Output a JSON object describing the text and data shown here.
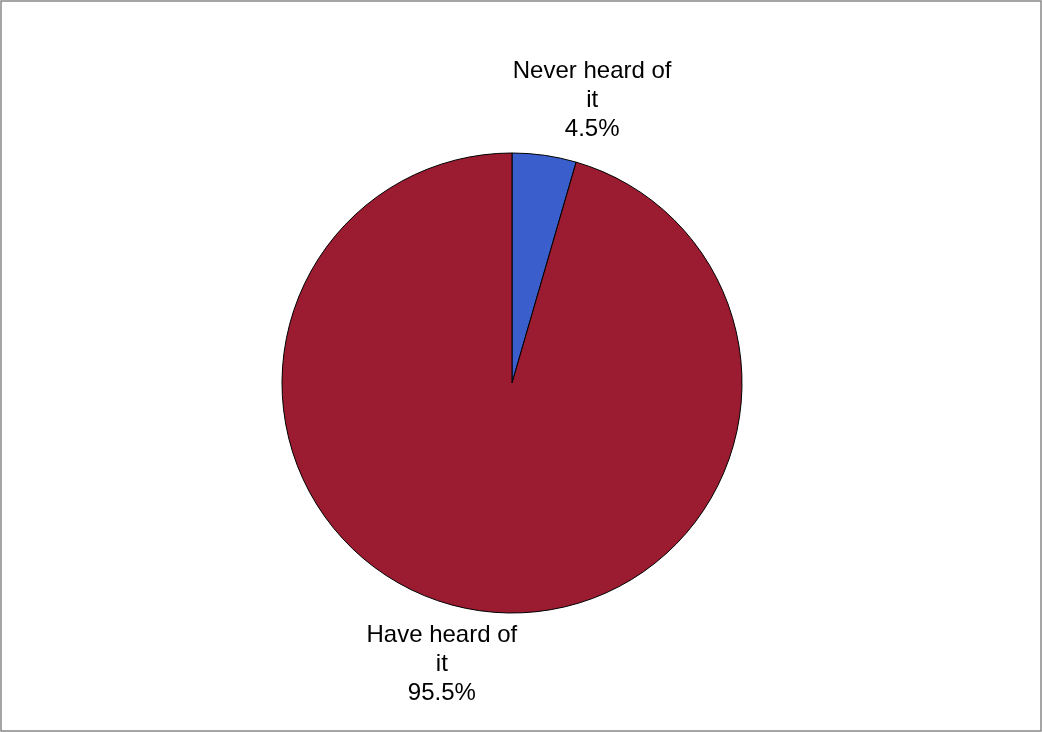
{
  "chart_data": {
    "type": "pie",
    "categories": [
      "Never heard of it",
      "Have heard of it"
    ],
    "values": [
      4.5,
      95.5
    ],
    "colors": [
      "#3a5fcd",
      "#9b1b30"
    ],
    "value_labels": [
      "4.5%",
      "95.5%"
    ]
  }
}
